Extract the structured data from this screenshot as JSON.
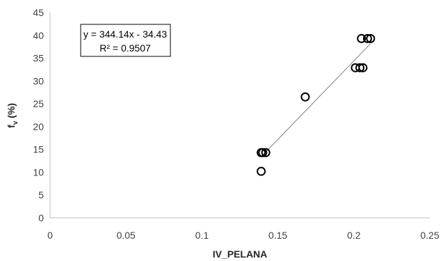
{
  "chart_data": {
    "type": "scatter",
    "title": "",
    "xlabel": "IV_PELANA",
    "ylabel_main": "f",
    "ylabel_sub": "v",
    "ylabel_suffix": " (%)",
    "xlim": [
      0,
      0.25
    ],
    "ylim": [
      0,
      45
    ],
    "xticks": [
      0,
      0.05,
      0.1,
      0.15,
      0.2,
      0.25
    ],
    "xtick_labels": [
      "0",
      "0.05",
      "0.1",
      "0.15",
      "0.2",
      "0.25"
    ],
    "yticks": [
      0,
      5,
      10,
      15,
      20,
      25,
      30,
      35,
      40,
      45
    ],
    "ytick_labels": [
      "0",
      "5",
      "10",
      "15",
      "20",
      "25",
      "30",
      "35",
      "40",
      "45"
    ],
    "grid": false,
    "legend": "none",
    "marker": "open-circle",
    "marker_color": "#000000",
    "points": [
      {
        "x": 0.139,
        "y": 10.2
      },
      {
        "x": 0.139,
        "y": 14.3
      },
      {
        "x": 0.14,
        "y": 14.3
      },
      {
        "x": 0.142,
        "y": 14.3
      },
      {
        "x": 0.168,
        "y": 26.5
      },
      {
        "x": 0.201,
        "y": 32.9
      },
      {
        "x": 0.204,
        "y": 32.9
      },
      {
        "x": 0.206,
        "y": 32.9
      },
      {
        "x": 0.205,
        "y": 39.3
      },
      {
        "x": 0.209,
        "y": 39.3
      },
      {
        "x": 0.211,
        "y": 39.3
      }
    ],
    "trendline": {
      "type": "linear",
      "slope": 344.14,
      "intercept": -34.43,
      "x_range": [
        0.139,
        0.211
      ],
      "color": "#7f7f7f"
    },
    "annotation": {
      "equation": "y = 344.14x - 34.43",
      "r2": "R² = 0.9507"
    }
  }
}
